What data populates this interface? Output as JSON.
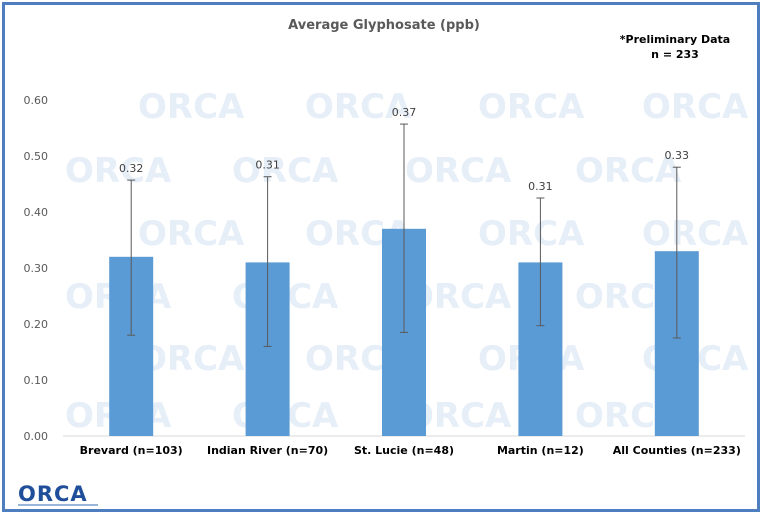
{
  "watermark": "ORCA",
  "logo": {
    "text": "ORCA"
  },
  "note": {
    "line1": "*Preliminary Data",
    "line2": "n = 233"
  },
  "colors": {
    "bar": "#5b9bd5",
    "border": "#4f7ec0",
    "errorbar": "#595959",
    "watermark": "#e6eef8"
  },
  "chart_data": {
    "type": "bar",
    "title": "Average Glyphosate (ppb)",
    "xlabel": "",
    "ylabel": "",
    "categories": [
      "Brevard (n=103)",
      "Indian River (n=70)",
      "St. Lucie (n=48)",
      "Martin (n=12)",
      "All Counties (n=233)"
    ],
    "values": [
      0.32,
      0.31,
      0.37,
      0.31,
      0.33
    ],
    "data_labels": [
      "0.32",
      "0.31",
      "0.37",
      "0.31",
      "0.33"
    ],
    "error_low": [
      0.18,
      0.16,
      0.185,
      0.197,
      0.175
    ],
    "error_high": [
      0.457,
      0.463,
      0.557,
      0.425,
      0.48
    ],
    "ylim": [
      0,
      0.6
    ],
    "yticks": [
      "0.00",
      "0.10",
      "0.20",
      "0.30",
      "0.40",
      "0.50",
      "0.60"
    ],
    "ytick_values": [
      0,
      0.1,
      0.2,
      0.3,
      0.4,
      0.5,
      0.6
    ],
    "grid": false,
    "legend": "none"
  }
}
